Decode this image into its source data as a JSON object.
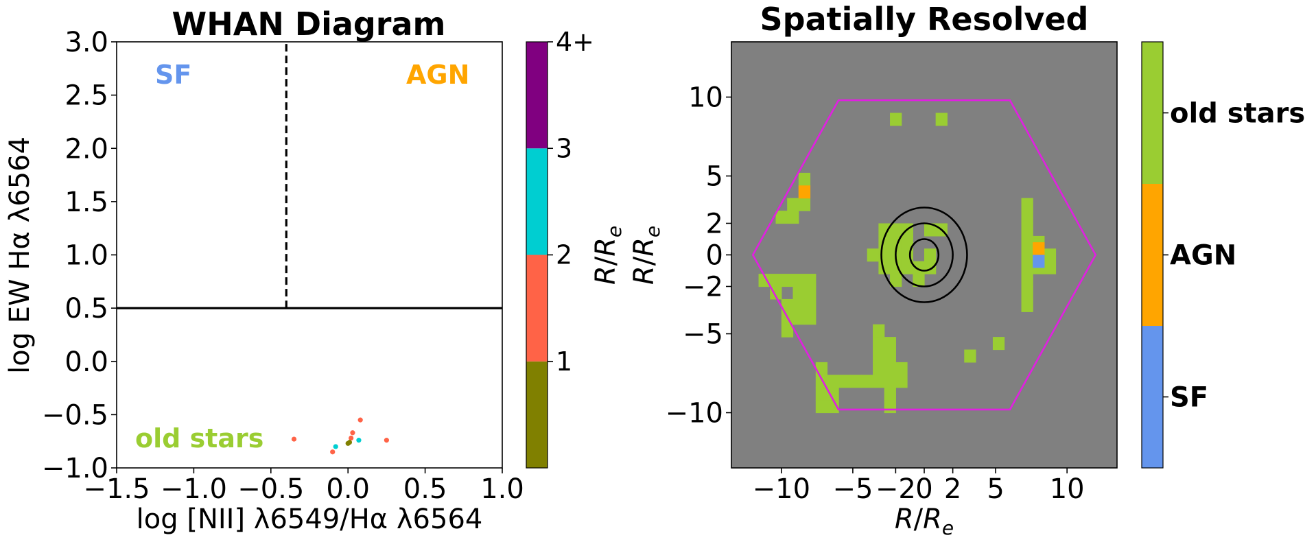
{
  "chart_data": [
    {
      "type": "scatter",
      "title": "WHAN Diagram",
      "xlabel": "log [NII] λ6549/Hα λ6564",
      "ylabel": "log EW Hα λ6564",
      "xlim": [
        -1.5,
        1.0
      ],
      "ylim": [
        -1.0,
        3.0
      ],
      "xticks": [
        "−1.5",
        "−1.0",
        "−0.5",
        "0.0",
        "0.5",
        "1.0"
      ],
      "yticks": [
        "−1.0",
        "−0.5",
        "0.0",
        "0.5",
        "1.0",
        "1.5",
        "2.0",
        "2.5",
        "3.0"
      ],
      "region_labels": [
        {
          "text": "SF",
          "color": "#6495ED"
        },
        {
          "text": "AGN",
          "color": "#FFA500"
        },
        {
          "text": "old stars",
          "color": "#9ACD32"
        }
      ],
      "lines": [
        {
          "orientation": "vertical",
          "x": -0.4,
          "y_range": [
            0.5,
            3.0
          ],
          "style": "dashed"
        },
        {
          "orientation": "horizontal",
          "y": 0.5,
          "style": "solid"
        }
      ],
      "points": [
        {
          "x": -0.35,
          "y": -0.73,
          "bin": 1
        },
        {
          "x": 0.08,
          "y": -0.55,
          "bin": 1
        },
        {
          "x": 0.25,
          "y": -0.74,
          "bin": 1
        },
        {
          "x": 0.03,
          "y": -0.67,
          "bin": 1
        },
        {
          "x": 0.02,
          "y": -0.72,
          "bin": 1
        },
        {
          "x": -0.1,
          "y": -0.85,
          "bin": 1
        },
        {
          "x": -0.08,
          "y": -0.8,
          "bin": 2
        },
        {
          "x": 0.07,
          "y": -0.74,
          "bin": 2
        },
        {
          "x": 0.0,
          "y": -0.77,
          "bin": 0
        },
        {
          "x": 0.01,
          "y": -0.76,
          "bin": 0
        }
      ],
      "colorbar": {
        "label": "R/R_e",
        "tick_labels": [
          "1",
          "2",
          "3",
          "4+"
        ],
        "bin_colors": [
          "#808000",
          "#FF6347",
          "#00CED1",
          "#800080"
        ]
      }
    },
    {
      "type": "heatmap",
      "title": "Spatially Resolved",
      "xlabel": "R/R_e",
      "ylabel": "R/R_e",
      "xlim": [
        -13.5,
        13.5
      ],
      "ylim": [
        -13.5,
        13.5
      ],
      "xticks": [
        -10,
        -5,
        -2,
        0,
        2,
        5,
        10
      ],
      "xtick_labels": [
        "−10",
        "−5",
        "−2",
        "0",
        "2",
        "5",
        "10"
      ],
      "yticks": [
        -10,
        -5,
        -2,
        0,
        2,
        5,
        10
      ],
      "ytick_labels": [
        "−10",
        "−5",
        "−2",
        "0",
        "2",
        "5",
        "10"
      ],
      "background_color": "#808080",
      "hexagon_color": "#E020E0",
      "hexagon_vertices": [
        [
          -12,
          0
        ],
        [
          -6,
          9.8
        ],
        [
          6,
          9.8
        ],
        [
          12,
          0
        ],
        [
          6,
          -9.8
        ],
        [
          -6,
          -9.8
        ]
      ],
      "ellipses": [
        {
          "rx": 1.0,
          "ry": 1.0
        },
        {
          "rx": 2.0,
          "ry": 2.0
        },
        {
          "rx": 3.0,
          "ry": 3.0
        }
      ],
      "pixel_size": 0.8,
      "pixels": {
        "old_stars": [
          [
            -2,
            8.6
          ],
          [
            1.2,
            8.6
          ],
          [
            -8.4,
            4.8
          ],
          [
            -8.4,
            4
          ],
          [
            -8.4,
            3.2
          ],
          [
            -9.2,
            3.2
          ],
          [
            -9.2,
            2.4
          ],
          [
            -10,
            2.4
          ],
          [
            -2.8,
            1.6
          ],
          [
            -2,
            1.6
          ],
          [
            -1.2,
            1.6
          ],
          [
            0.4,
            1.6
          ],
          [
            1.2,
            1.6
          ],
          [
            -2.8,
            0.8
          ],
          [
            -2,
            0.8
          ],
          [
            -1.2,
            0.8
          ],
          [
            -3.6,
            0
          ],
          [
            -2.8,
            0
          ],
          [
            -2,
            0
          ],
          [
            -1.2,
            0
          ],
          [
            0.4,
            0
          ],
          [
            -2.8,
            -0.8
          ],
          [
            -2,
            -0.8
          ],
          [
            -1.2,
            -0.8
          ],
          [
            -0.4,
            -0.8
          ],
          [
            0.4,
            -0.8
          ],
          [
            -2,
            -1.6
          ],
          [
            -0.4,
            -1.6
          ],
          [
            7.2,
            3.2
          ],
          [
            7.2,
            2.4
          ],
          [
            7.2,
            1.6
          ],
          [
            7.2,
            0.8
          ],
          [
            7.2,
            0
          ],
          [
            7.2,
            -0.8
          ],
          [
            7.2,
            -1.6
          ],
          [
            7.2,
            -2.4
          ],
          [
            7.2,
            -3.2
          ],
          [
            8,
            0.8
          ],
          [
            8.8,
            0
          ],
          [
            8.8,
            -0.8
          ],
          [
            8,
            -0.8
          ],
          [
            -11.2,
            -1.6
          ],
          [
            -10.4,
            -1.6
          ],
          [
            -9.6,
            -1.6
          ],
          [
            -8.8,
            -1.6
          ],
          [
            -8,
            -1.6
          ],
          [
            -10.4,
            -2.4
          ],
          [
            -8.8,
            -2.4
          ],
          [
            -8,
            -2.4
          ],
          [
            -9.6,
            -3.2
          ],
          [
            -8.8,
            -3.2
          ],
          [
            -8,
            -3.2
          ],
          [
            -9.6,
            -4
          ],
          [
            -8.8,
            -4
          ],
          [
            -8,
            -4
          ],
          [
            -9.6,
            -4.8
          ],
          [
            -3.2,
            -4.8
          ],
          [
            -3.2,
            -5.6
          ],
          [
            -2.4,
            -5.6
          ],
          [
            -3.2,
            -6.4
          ],
          [
            -2.4,
            -6.4
          ],
          [
            -3.2,
            -7.2
          ],
          [
            -2.4,
            -7.2
          ],
          [
            -1.6,
            -7.2
          ],
          [
            -3.2,
            -8
          ],
          [
            -2.4,
            -8
          ],
          [
            -1.6,
            -8
          ],
          [
            -2.4,
            -8.8
          ],
          [
            -2.4,
            -9.6
          ],
          [
            -7.2,
            -7.2
          ],
          [
            -7.2,
            -8
          ],
          [
            -6.4,
            -8
          ],
          [
            -5.6,
            -8
          ],
          [
            -4.8,
            -8
          ],
          [
            -4,
            -8
          ],
          [
            -7.2,
            -8.8
          ],
          [
            -6.4,
            -8.8
          ],
          [
            -7.2,
            -9.6
          ],
          [
            -6.4,
            -9.6
          ],
          [
            3.2,
            -6.4
          ],
          [
            5.2,
            -5.6
          ]
        ],
        "agn": [
          [
            -8.4,
            4
          ],
          [
            8,
            0.4
          ]
        ],
        "sf": [
          [
            8,
            -0.4
          ]
        ]
      },
      "colorbar": {
        "tick_labels": [
          "SF",
          "AGN",
          "old stars"
        ],
        "colors": [
          "#6495ED",
          "#FFA500",
          "#9ACD32"
        ]
      }
    }
  ]
}
